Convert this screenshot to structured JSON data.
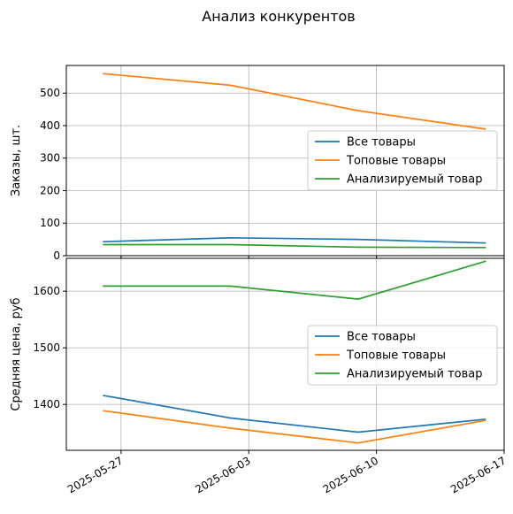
{
  "chart_data": {
    "type": "line",
    "title": "Анализ конкурентов",
    "x_dates": [
      "2025-05-26",
      "2025-06-02",
      "2025-06-09",
      "2025-06-16"
    ],
    "x_ticks": [
      "2025-05-27",
      "2025-06-03",
      "2025-06-10",
      "2025-06-17"
    ],
    "x_range": [
      "2025-05-24",
      "2025-06-17"
    ],
    "grid": true,
    "legend_location": "right",
    "panels": [
      {
        "id": "orders",
        "ylabel": "Заказы, шт.",
        "ylim": [
          0,
          585
        ],
        "yticks": [
          0,
          100,
          200,
          300,
          400,
          500
        ],
        "series": [
          {
            "name": "Все товары",
            "color": "#1f77b4",
            "values": [
              43,
              55,
              50,
              39
            ]
          },
          {
            "name": "Топовые товары",
            "color": "#ff7f0e",
            "values": [
              560,
              524,
              446,
              389
            ]
          },
          {
            "name": "Анализируемый товар",
            "color": "#2ca02c",
            "values": [
              34,
              34,
              26,
              25
            ]
          }
        ]
      },
      {
        "id": "price",
        "ylabel": "Средняя цена, руб",
        "ylim": [
          1319,
          1658
        ],
        "yticks": [
          1400,
          1500,
          1600
        ],
        "series": [
          {
            "name": "Все товары",
            "color": "#1f77b4",
            "values": [
              1416,
              1376,
              1351,
              1374
            ]
          },
          {
            "name": "Топовые товары",
            "color": "#ff7f0e",
            "values": [
              1389,
              1358,
              1332,
              1372
            ]
          },
          {
            "name": "Анализируемый товар",
            "color": "#2ca02c",
            "values": [
              1609,
              1609,
              1586,
              1653
            ]
          }
        ]
      }
    ]
  }
}
